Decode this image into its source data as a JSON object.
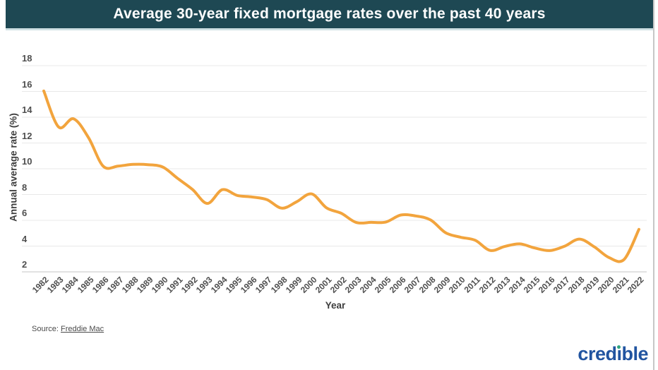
{
  "header": {
    "title": "Average 30-year fixed mortgage rates over the past 40 years"
  },
  "chart_data": {
    "type": "line",
    "title": "Average 30-year fixed mortgage rates over the past 40 years",
    "x": [
      1982,
      1983,
      1984,
      1985,
      1986,
      1987,
      1988,
      1989,
      1990,
      1991,
      1992,
      1993,
      1994,
      1995,
      1996,
      1997,
      1998,
      1999,
      2000,
      2001,
      2002,
      2003,
      2004,
      2005,
      2006,
      2007,
      2008,
      2009,
      2010,
      2011,
      2012,
      2013,
      2014,
      2015,
      2016,
      2017,
      2018,
      2019,
      2020,
      2021,
      2022
    ],
    "series": [
      {
        "name": "Annual average rate (%)",
        "values": [
          16.04,
          13.24,
          13.88,
          12.43,
          10.19,
          10.21,
          10.34,
          10.32,
          10.13,
          9.25,
          8.39,
          7.31,
          8.38,
          7.93,
          7.81,
          7.6,
          6.94,
          7.44,
          8.05,
          6.97,
          6.54,
          5.83,
          5.84,
          5.87,
          6.41,
          6.34,
          6.03,
          5.04,
          4.69,
          4.45,
          3.66,
          3.98,
          4.17,
          3.85,
          3.65,
          3.99,
          4.54,
          3.94,
          3.1,
          2.96,
          5.3
        ]
      }
    ],
    "xlabel": "Year",
    "ylabel": "Annual average rate (%)",
    "ylim": [
      2,
      18
    ],
    "yticks": [
      2,
      4,
      6,
      8,
      10,
      12,
      14,
      16,
      18
    ],
    "grid": true,
    "legend": "none",
    "line_color": "#F2A43D"
  },
  "footer": {
    "source_label": "Source:",
    "source_link": "Freddie Mac",
    "logo_text": "credible"
  },
  "colors": {
    "header_bg": "#1E4853",
    "header_border": "#cfe0e3",
    "rule": "#c6c6c6",
    "grid": "#e8e8e8",
    "axis": "#d8d8d8",
    "tick": "#4f4f4f",
    "axis_label": "#3d3d3d",
    "source": "#4a4a4a",
    "logo_blue": "#2154A0",
    "logo_green": "#2FA580"
  }
}
